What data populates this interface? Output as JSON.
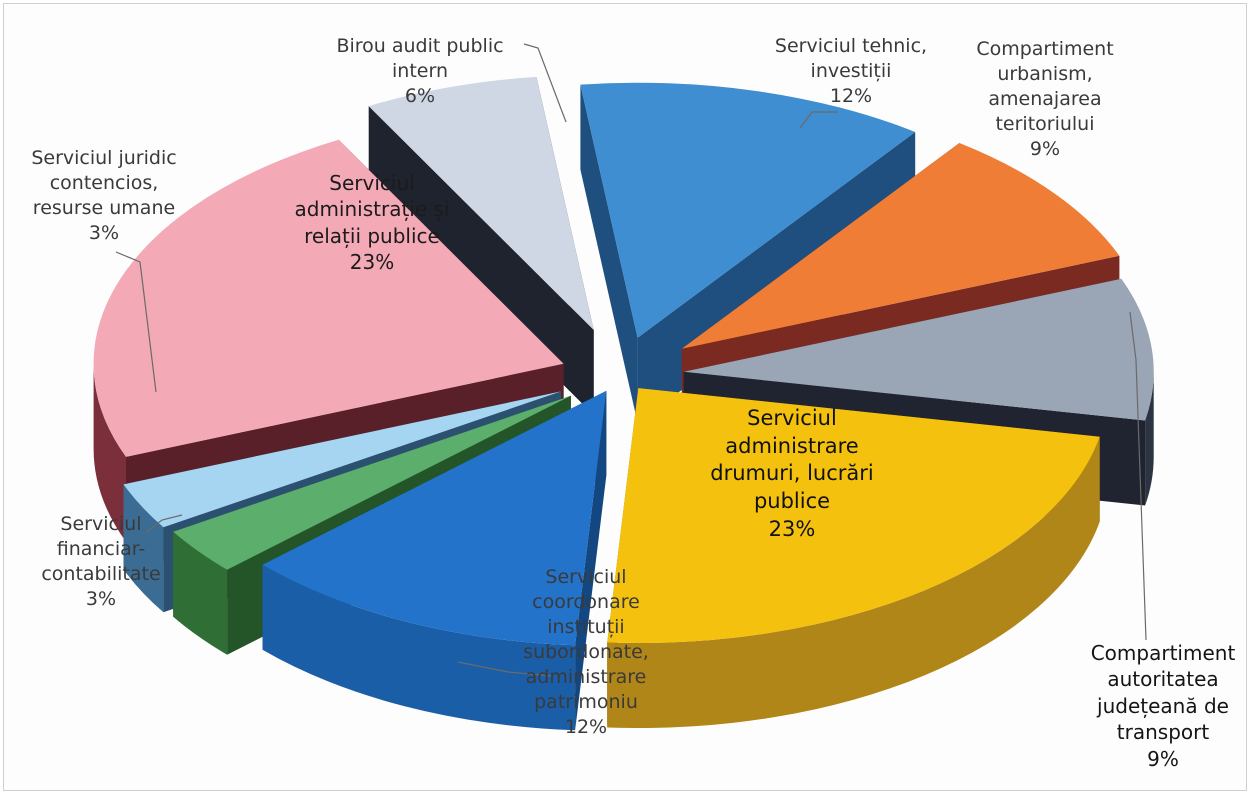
{
  "chart_data": {
    "type": "pie",
    "title": "",
    "slices": [
      {
        "label_lines": [
          "Serviciul tehnic,",
          "investiții"
        ],
        "value": 12,
        "pct": "12%",
        "top": "#3f8ed2",
        "side": "#2c6da6",
        "inside": "#1f4f7e"
      },
      {
        "label_lines": [
          "Compartiment",
          "urbanism,",
          "amenajarea",
          "teritoriului"
        ],
        "value": 9,
        "pct": "9%",
        "top": "#ef7d35",
        "side": "#a9322a",
        "inside": "#7a2a20"
      },
      {
        "label_lines": [
          "Compartiment",
          "autoritatea",
          "județeană de",
          "transport"
        ],
        "value": 9,
        "pct": "9%",
        "top": "#9aa5b6",
        "side": "#2c3342",
        "inside": "#1f2430"
      },
      {
        "label_lines": [
          "Serviciul",
          "administrare",
          "drumuri, lucrări",
          "publice"
        ],
        "value": 23,
        "pct": "23%",
        "top": "#f4c20e",
        "side": "#b08618",
        "inside": "#8a6a10"
      },
      {
        "label_lines": [
          "Serviciul",
          "coordonare",
          "instituții",
          "subordonate,",
          "administrare",
          "patrimoniu"
        ],
        "value": 12,
        "pct": "12%",
        "top": "#2273c9",
        "side": "#1b5ea8",
        "inside": "#134781"
      },
      {
        "label_lines": [
          "Serviciul",
          "financiar-",
          "contabilitate"
        ],
        "value": 3,
        "pct": "3%",
        "top": "#5cae6c",
        "side": "#2f6f35",
        "inside": "#245528"
      },
      {
        "label_lines": [
          "Serviciul juridic",
          "contencios,",
          "resurse umane"
        ],
        "value": 3,
        "pct": "3%",
        "top": "#a6d5f2",
        "side": "#3a6c94",
        "inside": "#2c5070"
      },
      {
        "label_lines": [
          "Serviciul",
          "administrație și",
          "relații publice"
        ],
        "value": 23,
        "pct": "23%",
        "top": "#f3a9b6",
        "side": "#7a2f3b",
        "inside": "#5a2029"
      },
      {
        "label_lines": [
          "Birou audit public",
          "intern"
        ],
        "value": 6,
        "pct": "6%",
        "top": "#cfd6e4",
        "side": "#2c3240",
        "inside": "#1e232d"
      }
    ]
  }
}
